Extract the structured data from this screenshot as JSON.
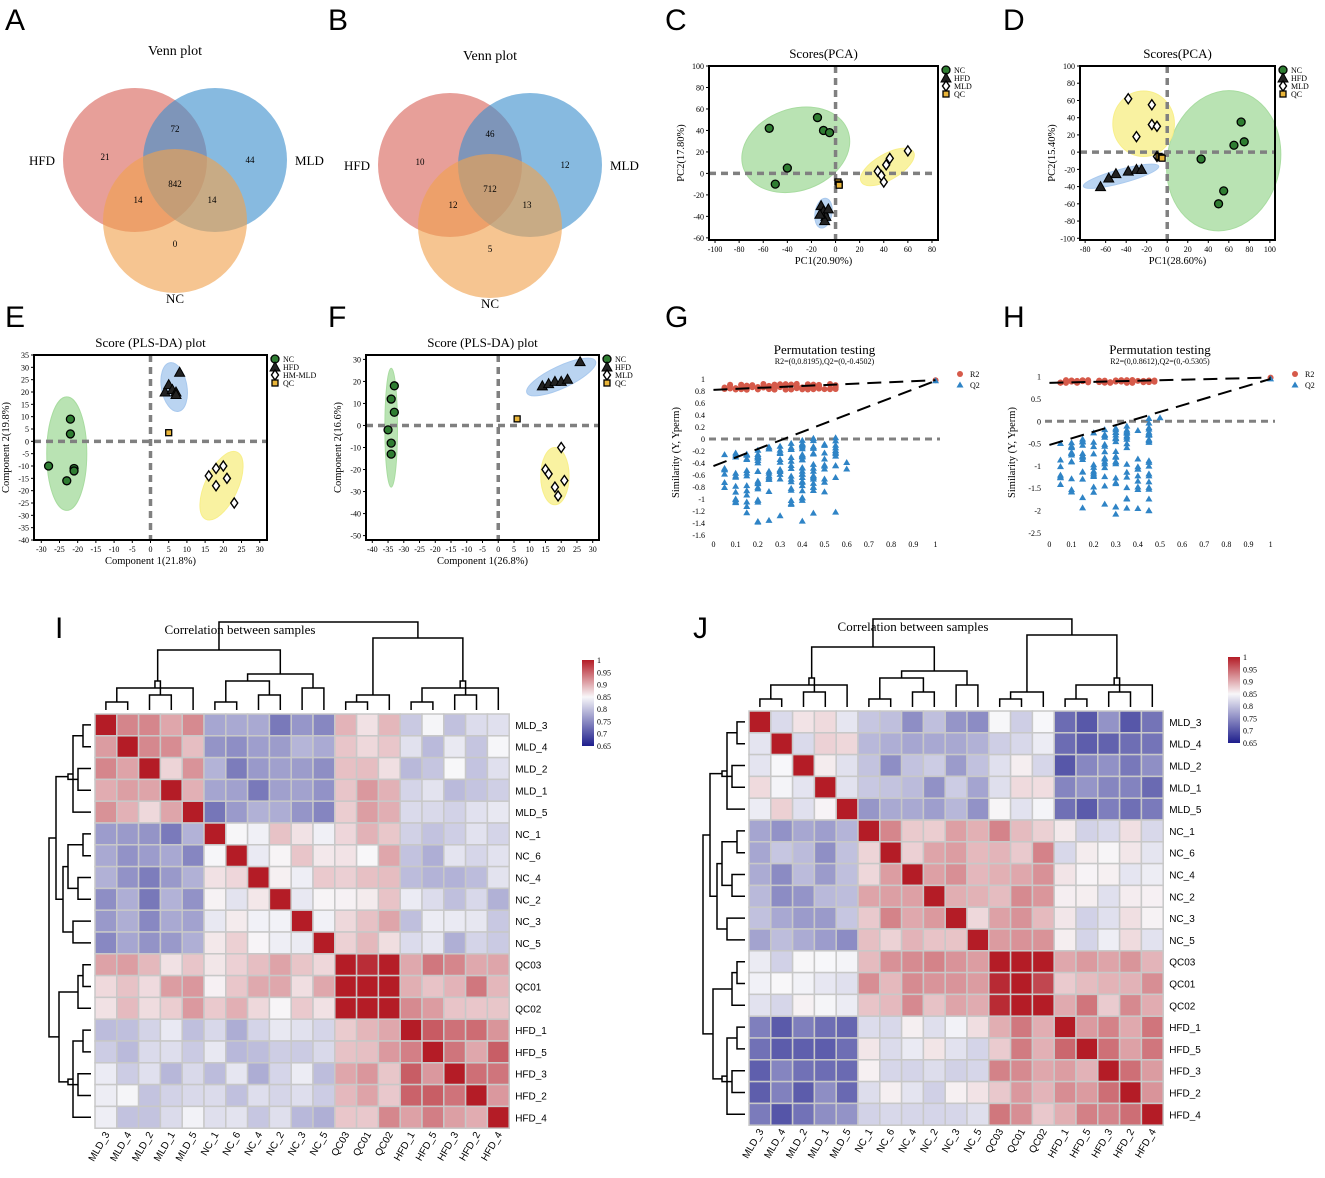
{
  "panel_labels": [
    "A",
    "B",
    "C",
    "D",
    "E",
    "F",
    "G",
    "H",
    "I",
    "J"
  ],
  "chart_data": [
    {
      "id": "A",
      "type": "venn",
      "title": "Venn plot",
      "sets": [
        "HFD",
        "MLD",
        "NC"
      ],
      "colors": [
        "#d9645a",
        "#3d8fcd",
        "#f0a14d"
      ],
      "regions": {
        "HFD_only": 21,
        "MLD_only": 44,
        "NC_only": 0,
        "HFD_MLD": 72,
        "HFD_NC": 14,
        "MLD_NC": 14,
        "all": 842
      }
    },
    {
      "id": "B",
      "type": "venn",
      "title": "Venn plot",
      "sets": [
        "HFD",
        "MLD",
        "NC"
      ],
      "colors": [
        "#d9645a",
        "#3d8fcd",
        "#f0a14d"
      ],
      "regions": {
        "HFD_only": 10,
        "MLD_only": 12,
        "NC_only": 5,
        "HFD_MLD": 46,
        "HFD_NC": 12,
        "MLD_NC": 13,
        "all": 712
      }
    },
    {
      "id": "C",
      "type": "scatter",
      "title": "Scores(PCA)",
      "xlabel": "PC1(20.90%)",
      "ylabel": "PC2(17.80%)",
      "xlim": [
        -105,
        85
      ],
      "ylim": [
        -62,
        100
      ],
      "xticks": [
        -100,
        -80,
        -60,
        -40,
        -20,
        0,
        20,
        40,
        60,
        80
      ],
      "yticks": [
        -60,
        -40,
        -20,
        0,
        20,
        40,
        60,
        80,
        100
      ],
      "legend": [
        "NC",
        "HFD",
        "MLD",
        "QC"
      ],
      "series": [
        {
          "name": "NC",
          "marker": "circle",
          "x": [
            -55,
            -40,
            -15,
            -10,
            -5,
            -50
          ],
          "y": [
            42,
            5,
            52,
            40,
            38,
            -10
          ]
        },
        {
          "name": "HFD",
          "marker": "triangle",
          "x": [
            -12,
            -10,
            -8,
            -6,
            -9,
            -13
          ],
          "y": [
            -30,
            -35,
            -40,
            -33,
            -44,
            -38
          ]
        },
        {
          "name": "MLD",
          "marker": "diamond",
          "x": [
            35,
            40,
            42,
            45,
            60,
            38
          ],
          "y": [
            2,
            -8,
            8,
            14,
            21,
            -2
          ]
        },
        {
          "name": "QC",
          "marker": "square",
          "x": [
            2,
            3,
            3
          ],
          "y": [
            -8,
            -10,
            -11
          ]
        }
      ],
      "ellipses": [
        {
          "group": "NC",
          "cx": -33,
          "cy": 22,
          "rx": 46,
          "ry": 38,
          "rot": -20
        },
        {
          "group": "HFD",
          "cx": -10,
          "cy": -37,
          "rx": 7,
          "ry": 14,
          "rot": 10
        },
        {
          "group": "MLD",
          "cx": 43,
          "cy": 6,
          "rx": 25,
          "ry": 12,
          "rot": -30
        }
      ]
    },
    {
      "id": "D",
      "type": "scatter",
      "title": "Scores(PCA)",
      "xlabel": "PC1(28.60%)",
      "ylabel": "PC2(15.40%)",
      "xlim": [
        -85,
        105
      ],
      "ylim": [
        -102,
        100
      ],
      "xticks": [
        -80,
        -60,
        -40,
        -20,
        0,
        20,
        40,
        60,
        80,
        100
      ],
      "yticks": [
        -100,
        -80,
        -60,
        -40,
        -20,
        0,
        20,
        40,
        60,
        80,
        100
      ],
      "legend": [
        "NC",
        "HFD",
        "MLD",
        "QC"
      ],
      "series": [
        {
          "name": "NC",
          "marker": "circle",
          "x": [
            33,
            55,
            50,
            65,
            72,
            75
          ],
          "y": [
            -8,
            -45,
            -60,
            8,
            35,
            12
          ]
        },
        {
          "name": "HFD",
          "marker": "triangle",
          "x": [
            -65,
            -57,
            -50,
            -38,
            -30,
            -25
          ],
          "y": [
            -40,
            -30,
            -25,
            -22,
            -20,
            -20
          ]
        },
        {
          "name": "MLD",
          "marker": "diamond",
          "x": [
            -38,
            -30,
            -15,
            -15,
            -10,
            -10
          ],
          "y": [
            62,
            18,
            55,
            32,
            30,
            -5
          ]
        },
        {
          "name": "QC",
          "marker": "square",
          "x": [
            -8,
            -6,
            -5
          ],
          "y": [
            -5,
            -6,
            -7
          ]
        }
      ],
      "ellipses": [
        {
          "group": "NC",
          "cx": 55,
          "cy": -10,
          "rx": 55,
          "ry": 82,
          "rot": 12
        },
        {
          "group": "HFD",
          "cx": -45,
          "cy": -28,
          "rx": 38,
          "ry": 8,
          "rot": -15
        },
        {
          "group": "MLD",
          "cx": -23,
          "cy": 33,
          "rx": 30,
          "ry": 38,
          "rot": 0
        }
      ]
    },
    {
      "id": "E",
      "type": "scatter",
      "title": "Score (PLS-DA) plot",
      "xlabel": "Component 1(21.8%)",
      "ylabel": "Component 2(19.8%)",
      "xlim": [
        -32,
        32
      ],
      "ylim": [
        -40,
        35
      ],
      "xticks": [
        -30,
        -25,
        -20,
        -15,
        -10,
        -5,
        0,
        5,
        10,
        15,
        20,
        25,
        30
      ],
      "yticks": [
        -40,
        -35,
        -30,
        -25,
        -20,
        -15,
        -10,
        -5,
        0,
        5,
        10,
        15,
        20,
        25,
        30,
        35
      ],
      "legend": [
        "NC",
        "HFD",
        "HM-MLD",
        "QC"
      ],
      "series": [
        {
          "name": "NC",
          "marker": "circle",
          "x": [
            -22,
            -22,
            -23,
            -21,
            -21,
            -28
          ],
          "y": [
            9,
            3,
            -16,
            -11,
            -12,
            -10
          ]
        },
        {
          "name": "HFD",
          "marker": "triangle",
          "x": [
            4,
            5,
            6,
            7,
            8,
            7
          ],
          "y": [
            20,
            23,
            21,
            20,
            28,
            19
          ]
        },
        {
          "name": "HM-MLD",
          "marker": "diamond",
          "x": [
            16,
            18,
            20,
            18,
            21,
            23
          ],
          "y": [
            -14,
            -18,
            -10,
            -11,
            -15,
            -25
          ]
        },
        {
          "name": "QC",
          "marker": "square",
          "x": [
            5
          ],
          "y": [
            3.5
          ]
        }
      ],
      "ellipses": [
        {
          "group": "NC",
          "cx": -23,
          "cy": -5,
          "rx": 5.5,
          "ry": 23,
          "rot": 0
        },
        {
          "group": "HFD",
          "cx": 6.5,
          "cy": 22,
          "rx": 3.5,
          "ry": 10,
          "rot": -10
        },
        {
          "group": "HM-MLD",
          "cx": 19.5,
          "cy": -18,
          "rx": 4.5,
          "ry": 15,
          "rot": 25
        }
      ]
    },
    {
      "id": "F",
      "type": "scatter",
      "title": "Score (PLS-DA) plot",
      "xlabel": "Component 1(26.8%)",
      "ylabel": "Component 2(16.6%)",
      "xlim": [
        -42,
        32
      ],
      "ylim": [
        -52,
        32
      ],
      "xticks": [
        -40,
        -35,
        -30,
        -25,
        -20,
        -15,
        -10,
        -5,
        0,
        5,
        10,
        15,
        20,
        25,
        30
      ],
      "yticks": [
        -50,
        -40,
        -30,
        -20,
        -10,
        0,
        10,
        20,
        30
      ],
      "legend": [
        "NC",
        "HFD",
        "MLD",
        "QC"
      ],
      "series": [
        {
          "name": "NC",
          "marker": "circle",
          "x": [
            -33,
            -34,
            -35,
            -34,
            -34,
            -33
          ],
          "y": [
            18,
            12,
            -2,
            -8,
            -13,
            6
          ]
        },
        {
          "name": "HFD",
          "marker": "triangle",
          "x": [
            14,
            16,
            18,
            20,
            22,
            26
          ],
          "y": [
            18,
            19,
            20,
            20,
            21,
            29
          ]
        },
        {
          "name": "MLD",
          "marker": "diamond",
          "x": [
            15,
            16,
            18,
            19,
            20,
            21
          ],
          "y": [
            -20,
            -22,
            -28,
            -32,
            -10,
            -25
          ]
        },
        {
          "name": "QC",
          "marker": "square",
          "x": [
            6
          ],
          "y": [
            3
          ]
        }
      ],
      "ellipses": [
        {
          "group": "NC",
          "cx": -34,
          "cy": -1,
          "rx": 2,
          "ry": 27,
          "rot": 0
        },
        {
          "group": "HFD",
          "cx": 20,
          "cy": 22,
          "rx": 12,
          "ry": 5,
          "rot": -25
        },
        {
          "group": "MLD",
          "cx": 18,
          "cy": -23,
          "rx": 4.5,
          "ry": 13,
          "rot": 0
        }
      ]
    },
    {
      "id": "G",
      "type": "scatter",
      "title": "Permutation testing",
      "subtitle": "R2=(0,0.8195),Q2=(0,-0.4502)",
      "ylabel": "Similarity (Y, Yperm)",
      "xlabel": "",
      "xlim": [
        -0.02,
        1.02
      ],
      "ylim": [
        -1.6,
        1.15
      ],
      "xticks": [
        0,
        0.1,
        0.2,
        0.3,
        0.4,
        0.5,
        0.6,
        0.7,
        0.8,
        0.9,
        1
      ],
      "yticks": [
        -1.6,
        -1.4,
        -1.2,
        -1,
        -0.8,
        -0.6,
        -0.4,
        -0.2,
        0,
        0.2,
        0.4,
        0.6,
        0.8,
        1
      ],
      "legend": [
        "R2",
        "Q2"
      ],
      "r2_intercept": 0.8195,
      "q2_intercept": -0.4502,
      "r2_final": 0.98,
      "q2_final": 0.97,
      "perm_x_range": [
        0.05,
        0.58
      ],
      "r2_range": [
        0.82,
        0.92
      ],
      "q2_range": [
        -1.45,
        0.1
      ]
    },
    {
      "id": "H",
      "type": "scatter",
      "title": "Permutation testing",
      "subtitle": "R2=(0,0.8612),Q2=(0,-0.5305)",
      "ylabel": "Similarity (Y, Yperm)",
      "xlabel": "",
      "xlim": [
        -0.02,
        1.02
      ],
      "ylim": [
        -2.55,
        1.15
      ],
      "xticks": [
        0,
        0.1,
        0.2,
        0.3,
        0.4,
        0.5,
        0.6,
        0.7,
        0.8,
        0.9,
        1
      ],
      "yticks": [
        -2.5,
        -2,
        -1.5,
        -1,
        -0.5,
        0,
        0.5,
        1
      ],
      "legend": [
        "R2",
        "Q2"
      ],
      "r2_intercept": 0.8612,
      "q2_intercept": -0.5305,
      "r2_final": 0.98,
      "q2_final": 0.95,
      "perm_x_range": [
        0.05,
        0.48
      ],
      "r2_range": [
        0.86,
        0.93
      ],
      "q2_range": [
        -2.2,
        0.1
      ]
    },
    {
      "id": "I",
      "type": "heatmap",
      "title": "Correlation between samples",
      "rows": [
        "MLD_3",
        "MLD_4",
        "MLD_2",
        "MLD_1",
        "MLD_5",
        "NC_1",
        "NC_6",
        "NC_4",
        "NC_2",
        "NC_3",
        "NC_5",
        "QC03",
        "QC01",
        "QC02",
        "HFD_1",
        "HFD_5",
        "HFD_3",
        "HFD_2",
        "HFD_4"
      ],
      "cols": [
        "MLD_3",
        "MLD_4",
        "MLD_2",
        "MLD_1",
        "MLD_5",
        "NC_1",
        "NC_6",
        "NC_4",
        "NC_2",
        "NC_3",
        "NC_5",
        "QC03",
        "QC01",
        "QC02",
        "HFD_1",
        "HFD_5",
        "HFD_3",
        "HFD_2",
        "HFD_4"
      ],
      "colorbar": {
        "min": 0.65,
        "max": 1,
        "ticks": [
          "1",
          "0.95",
          "0.9",
          "0.85",
          "0.8",
          "0.75",
          "0.7",
          "0.65"
        ]
      },
      "group_sim": {
        "MLD": {
          "MLD": 0.9,
          "NC": 0.76,
          "QC": 0.89,
          "HFD": 0.82
        },
        "NC": {
          "MLD": 0.76,
          "NC": 0.86,
          "QC": 0.88,
          "HFD": 0.81
        },
        "QC": {
          "MLD": 0.89,
          "NC": 0.88,
          "QC": 1.0,
          "HFD": 0.91
        },
        "HFD": {
          "MLD": 0.82,
          "NC": 0.81,
          "QC": 0.91,
          "HFD": 0.93
        }
      }
    },
    {
      "id": "J",
      "type": "heatmap",
      "title": "Correlation between samples",
      "rows": [
        "MLD_3",
        "MLD_4",
        "MLD_2",
        "MLD_1",
        "MLD_5",
        "NC_1",
        "NC_6",
        "NC_4",
        "NC_2",
        "NC_3",
        "NC_5",
        "QC03",
        "QC01",
        "QC02",
        "HFD_1",
        "HFD_5",
        "HFD_3",
        "HFD_2",
        "HFD_4"
      ],
      "cols": [
        "MLD_3",
        "MLD_4",
        "MLD_2",
        "MLD_1",
        "MLD_5",
        "NC_1",
        "NC_6",
        "NC_4",
        "NC_2",
        "NC_3",
        "NC_5",
        "QC03",
        "QC01",
        "QC02",
        "HFD_1",
        "HFD_5",
        "HFD_3",
        "HFD_2",
        "HFD_4"
      ],
      "colorbar": {
        "min": 0.65,
        "max": 1,
        "ticks": [
          "1",
          "0.95",
          "0.9",
          "0.85",
          "0.8",
          "0.75",
          "0.7",
          "0.65"
        ]
      },
      "group_sim": {
        "MLD": {
          "MLD": 0.85,
          "NC": 0.78,
          "QC": 0.84,
          "HFD": 0.73
        },
        "NC": {
          "MLD": 0.78,
          "NC": 0.9,
          "QC": 0.9,
          "HFD": 0.84
        },
        "QC": {
          "MLD": 0.84,
          "NC": 0.9,
          "QC": 1.0,
          "HFD": 0.91
        },
        "HFD": {
          "MLD": 0.73,
          "NC": 0.84,
          "QC": 0.91,
          "HFD": 0.92
        }
      }
    }
  ]
}
